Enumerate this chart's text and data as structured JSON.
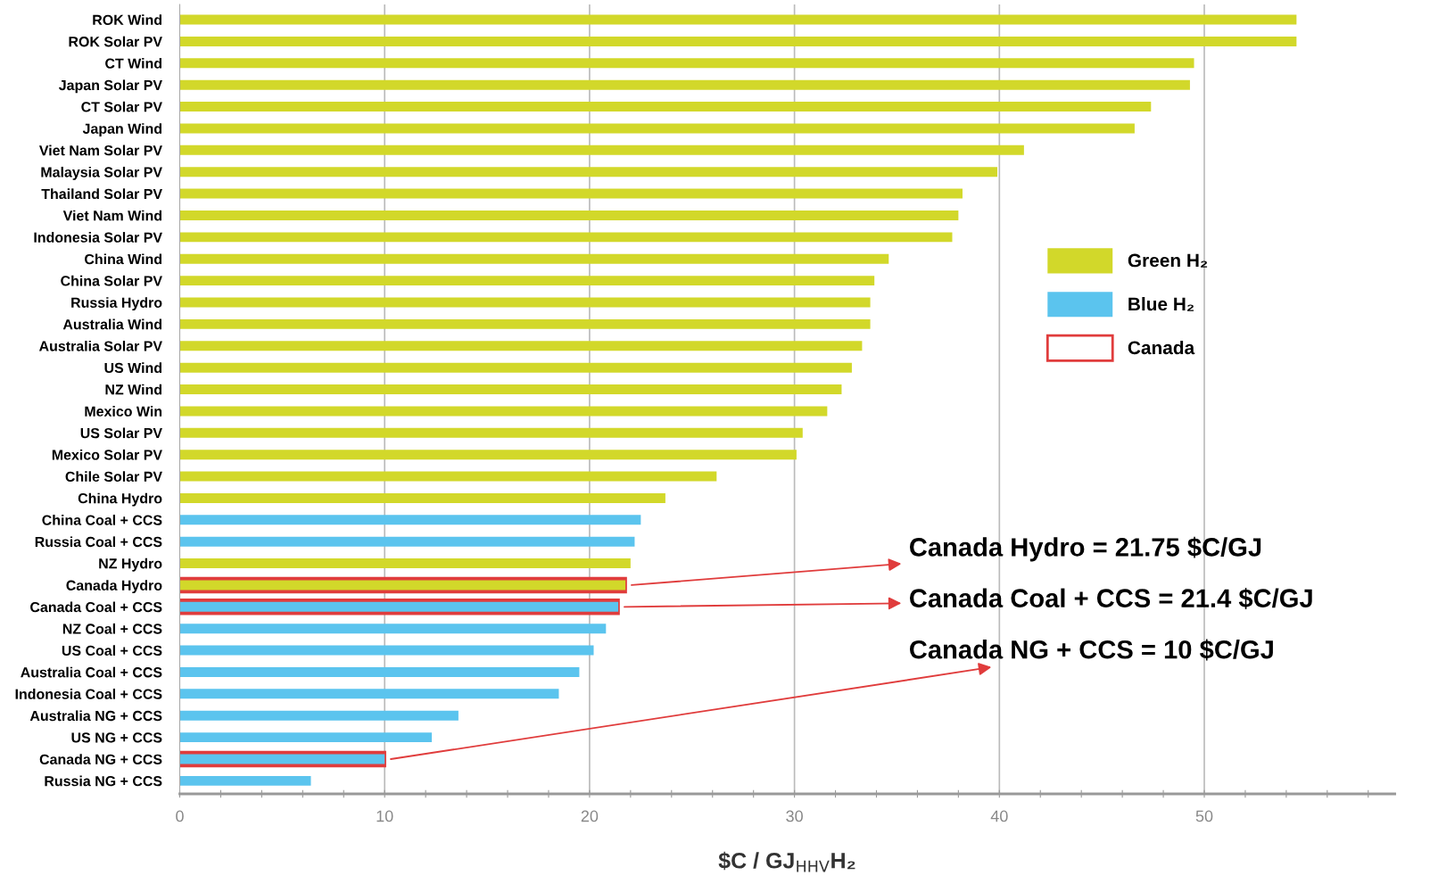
{
  "chart_data": {
    "type": "bar",
    "orientation": "horizontal",
    "xlabel": "$C / GJ$_{HHV}$H₂",
    "categories": [
      "ROK Wind",
      "ROK Solar PV",
      "CT Wind",
      "Japan Solar PV",
      "CT Solar PV",
      "Japan Wind",
      "Viet Nam Solar PV",
      "Malaysia Solar PV",
      "Thailand Solar PV",
      "Viet Nam Wind",
      "Indonesia Solar PV",
      "China Wind",
      "China Solar PV",
      "Russia Hydro",
      "Australia Wind",
      "Australia Solar PV",
      "US Wind",
      "NZ Wind",
      "Mexico Win",
      "US Solar PV",
      "Mexico Solar PV",
      "Chile Solar PV",
      "China Hydro",
      "China Coal + CCS",
      "Russia Coal + CCS",
      "NZ Hydro",
      "Canada Hydro",
      "Canada Coal + CCS",
      "NZ Coal + CCS",
      "US Coal + CCS",
      "Australia Coal + CCS",
      "Indonesia Coal + CCS",
      "Australia NG + CCS",
      "US NG + CCS",
      "Canada NG + CCS",
      "Russia NG + CCS"
    ],
    "series": [
      {
        "name": "Green H₂",
        "color": "#d2d82a",
        "values": [
          54.5,
          54.5,
          49.5,
          49.3,
          47.4,
          46.6,
          41.2,
          39.9,
          38.2,
          38.0,
          37.7,
          34.6,
          33.9,
          33.7,
          33.7,
          33.3,
          32.8,
          32.3,
          31.6,
          30.4,
          30.1,
          26.2,
          23.7,
          null,
          null,
          22.0,
          21.75,
          null,
          null,
          null,
          null,
          null,
          null,
          null,
          null,
          null
        ]
      },
      {
        "name": "Blue H₂",
        "color": "#5bc4ee",
        "values": [
          null,
          null,
          null,
          null,
          null,
          null,
          null,
          null,
          null,
          null,
          null,
          null,
          null,
          null,
          null,
          null,
          null,
          null,
          null,
          null,
          null,
          null,
          null,
          22.5,
          22.2,
          null,
          null,
          21.4,
          20.8,
          20.2,
          19.5,
          18.5,
          13.6,
          12.3,
          10,
          6.4
        ]
      },
      {
        "name": "Canada",
        "color": "#e03c3c",
        "values": [
          null,
          null,
          null,
          null,
          null,
          null,
          null,
          null,
          null,
          null,
          null,
          null,
          null,
          null,
          null,
          null,
          null,
          null,
          null,
          null,
          null,
          null,
          null,
          null,
          null,
          null,
          21.75,
          21.4,
          null,
          null,
          null,
          null,
          null,
          null,
          10,
          null
        ]
      }
    ],
    "xlim": [
      0,
      59.3
    ],
    "xticks": [
      0,
      {
        "value": 2,
        "label": null
      },
      {
        "value": 4,
        "label": null
      },
      {
        "value": 6,
        "label": null
      },
      {
        "value": 8,
        "label": null
      },
      10,
      {
        "value": 12,
        "label": null
      },
      {
        "value": 14,
        "label": null
      },
      {
        "value": 16,
        "label": null
      },
      {
        "value": 18,
        "label": null
      },
      20,
      {
        "value": 22,
        "label": null
      },
      {
        "value": 24,
        "label": null
      },
      {
        "value": 26,
        "label": null
      },
      {
        "value": 28,
        "label": null
      },
      30,
      {
        "value": 32,
        "label": null
      },
      {
        "value": 34,
        "label": null
      },
      {
        "value": 36,
        "label": null
      },
      {
        "value": 38,
        "label": null
      },
      40,
      {
        "value": 42,
        "label": null
      },
      {
        "value": 44,
        "label": null
      },
      {
        "value": 46,
        "label": null
      },
      {
        "value": 48,
        "label": null
      },
      50,
      {
        "value": 52,
        "label": null
      },
      {
        "value": 54,
        "label": null
      },
      {
        "value": 56,
        "label": null
      },
      {
        "value": 58,
        "label": null
      }
    ],
    "grid": "x",
    "legend": "right",
    "annotations": [
      {
        "text": "Canada Hydro = 21.75 $C/GJ",
        "x": 21.75,
        "y": "Canada Hydro"
      },
      {
        "text": "Canada Coal + CCS = 21.4 $C/GJ",
        "x": 21.4,
        "y": "Canada Coal + CCS"
      },
      {
        "text": "Canada NG + CCS = 10 $C/GJ",
        "x": 10,
        "y": "Canada NG + CCS"
      }
    ]
  }
}
